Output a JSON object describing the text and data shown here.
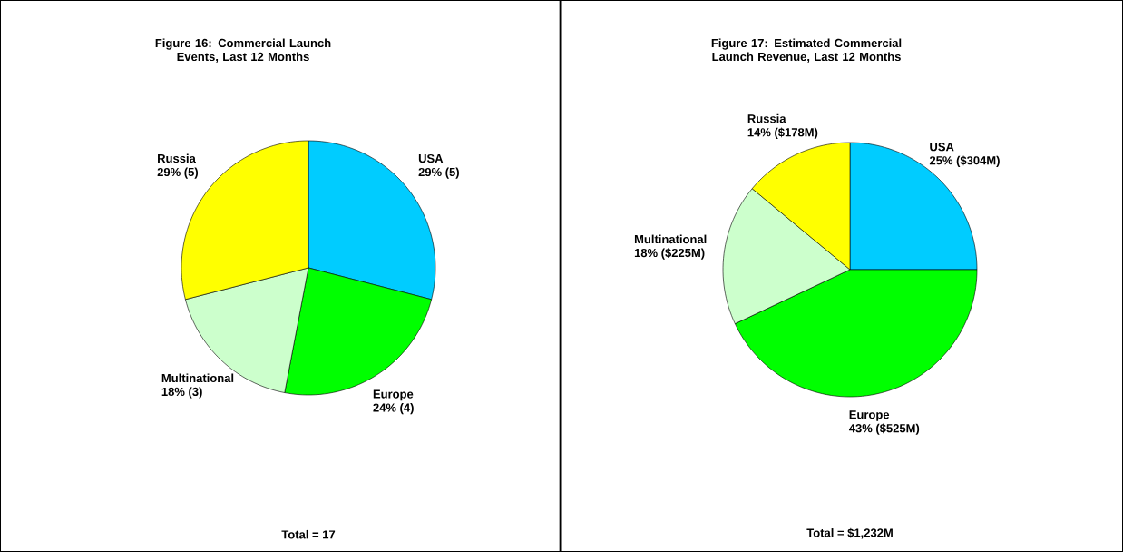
{
  "chart_data": [
    {
      "type": "pie",
      "title": "Figure 16: Commercial Launch Events, Last 12 Months",
      "categories": [
        "USA",
        "Europe",
        "Multinational",
        "Russia"
      ],
      "values": [
        29,
        24,
        18,
        29
      ],
      "colors": [
        "#00ccff",
        "#00ff00",
        "#ccffcc",
        "#ffff00"
      ],
      "value_labels": [
        "29% (5)",
        "24% (4)",
        "18% (3)",
        "29% (5)"
      ],
      "annotations": [
        "Total = 17"
      ]
    },
    {
      "type": "pie",
      "title": "Figure 17: Estimated Commercial Launch Revenue, Last 12 Months",
      "categories": [
        "USA",
        "Europe",
        "Multinational",
        "Russia"
      ],
      "values": [
        25,
        43,
        18,
        14
      ],
      "colors": [
        "#00ccff",
        "#00ff00",
        "#ccffcc",
        "#ffff00"
      ],
      "value_labels": [
        "25% ($304M)",
        "43% ($525M)",
        "18% ($225M)",
        "14% ($178M)"
      ],
      "annotations": [
        "Total = $1,232M"
      ]
    }
  ]
}
